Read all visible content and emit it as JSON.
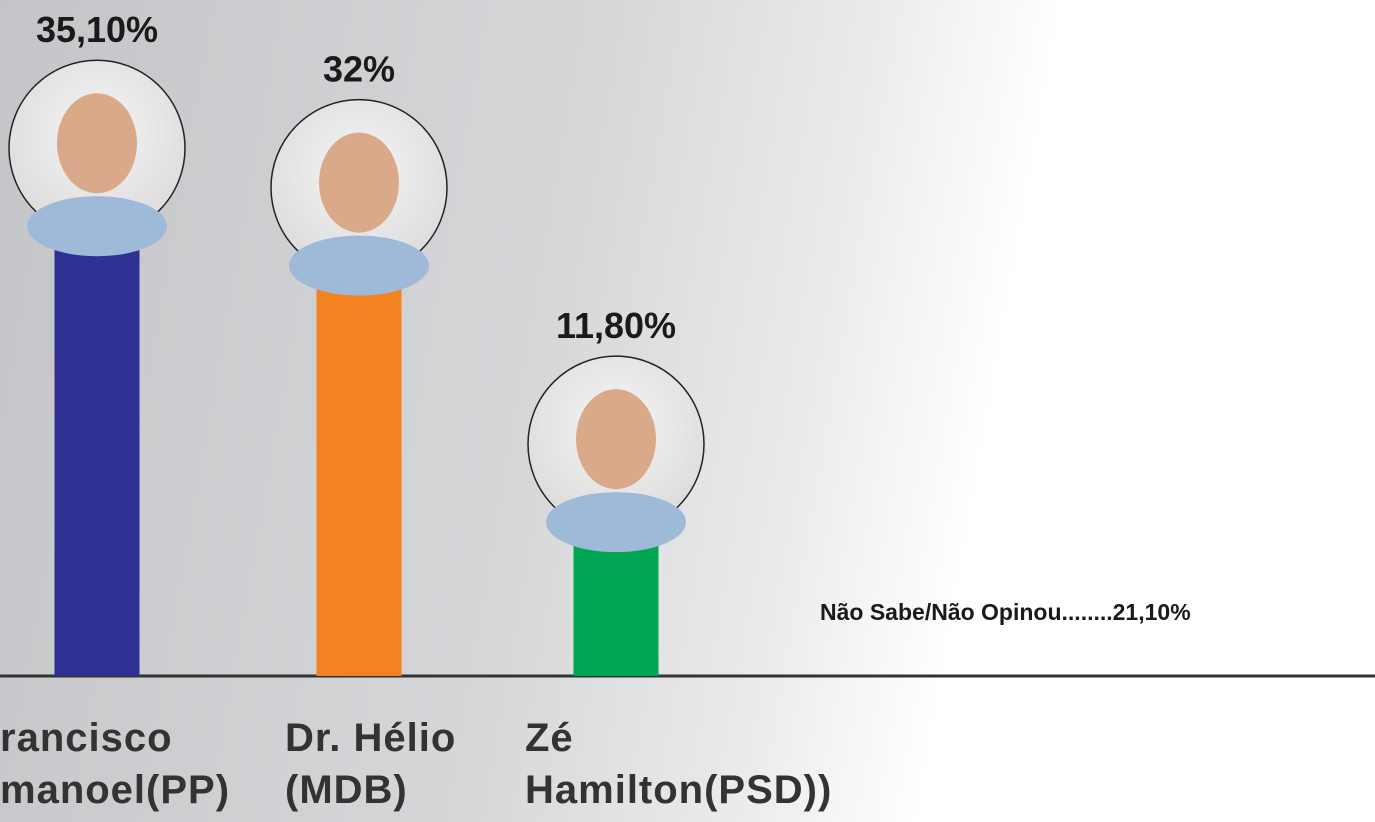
{
  "chart_data": {
    "type": "bar",
    "categories": [
      "rancisco manoel(PP)",
      "Dr. Hélio (MDB)",
      "Zé Hamilton(PSD))"
    ],
    "values": [
      35.1,
      32,
      11.8
    ],
    "value_labels": [
      "35,10%",
      "32%",
      "11,80%"
    ],
    "colors": [
      "#2e3192",
      "#f58220",
      "#00a651"
    ],
    "ylim": [
      0,
      40
    ],
    "annotation": "Não Sabe/Não Opinou........21,10%"
  }
}
